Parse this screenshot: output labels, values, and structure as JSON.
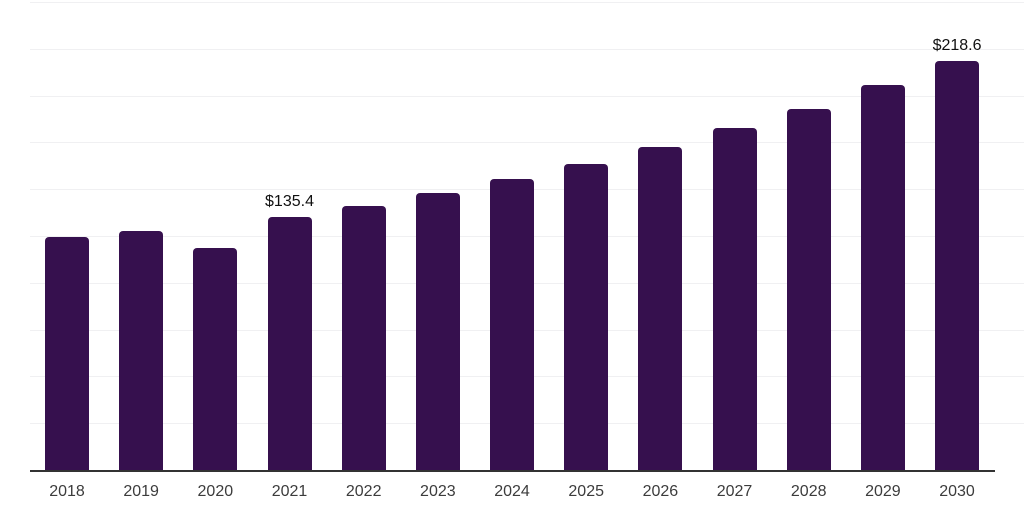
{
  "chart_data": {
    "type": "bar",
    "title": "",
    "xlabel": "",
    "ylabel": "",
    "categories": [
      "2018",
      "2019",
      "2020",
      "2021",
      "2022",
      "2023",
      "2024",
      "2025",
      "2026",
      "2027",
      "2028",
      "2029",
      "2030"
    ],
    "values": [
      124.6,
      127.8,
      118.8,
      135.4,
      141.2,
      148.1,
      155.2,
      163.3,
      172.3,
      182.6,
      192.9,
      205.6,
      218.6
    ],
    "data_labels": {
      "2021": "$135.4",
      "2030": "$218.6"
    },
    "ylim": [
      0,
      250
    ],
    "grid_step": 25,
    "grid": true,
    "legend_position": "none",
    "y_axis_tick_labels_visible": false,
    "bar_color": "#36104E",
    "gridline_color": "#F0F0F2",
    "axis_line_color": "#333333",
    "tick_label_color": "#3C3C3C",
    "data_label_color": "#111111",
    "background_color": "#FFFFFF"
  }
}
